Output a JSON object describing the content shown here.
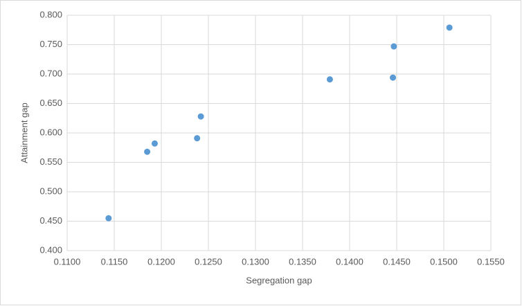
{
  "chart_data": {
    "type": "scatter",
    "x_label": "Segregation gap",
    "y_label": "Attainment gap",
    "x": [
      0.1144,
      0.1185,
      0.1193,
      0.1238,
      0.1242,
      0.1379,
      0.1446,
      0.1447,
      0.1506
    ],
    "values": [
      0.455,
      0.568,
      0.582,
      0.591,
      0.628,
      0.691,
      0.694,
      0.747,
      0.779
    ],
    "color": "#5b9bd5",
    "xlim": [
      0.11,
      0.155
    ],
    "ylim": [
      0.4,
      0.8
    ],
    "xticks": [
      {
        "value": 0.11,
        "label": "0.1100"
      },
      {
        "value": 0.115,
        "label": "0.1150"
      },
      {
        "value": 0.12,
        "label": "0.1200"
      },
      {
        "value": 0.125,
        "label": "0.1250"
      },
      {
        "value": 0.13,
        "label": "0.1300"
      },
      {
        "value": 0.135,
        "label": "0.1350"
      },
      {
        "value": 0.14,
        "label": "0.1400"
      },
      {
        "value": 0.145,
        "label": "0.1450"
      },
      {
        "value": 0.15,
        "label": "0.1500"
      },
      {
        "value": 0.155,
        "label": "0.1550"
      }
    ],
    "yticks": [
      {
        "value": 0.4,
        "label": "0.400"
      },
      {
        "value": 0.45,
        "label": "0.450"
      },
      {
        "value": 0.5,
        "label": "0.500"
      },
      {
        "value": 0.55,
        "label": "0.550"
      },
      {
        "value": 0.6,
        "label": "0.600"
      },
      {
        "value": 0.65,
        "label": "0.650"
      },
      {
        "value": 0.7,
        "label": "0.700"
      },
      {
        "value": 0.75,
        "label": "0.750"
      },
      {
        "value": 0.8,
        "label": "0.800"
      }
    ],
    "grid": true
  }
}
